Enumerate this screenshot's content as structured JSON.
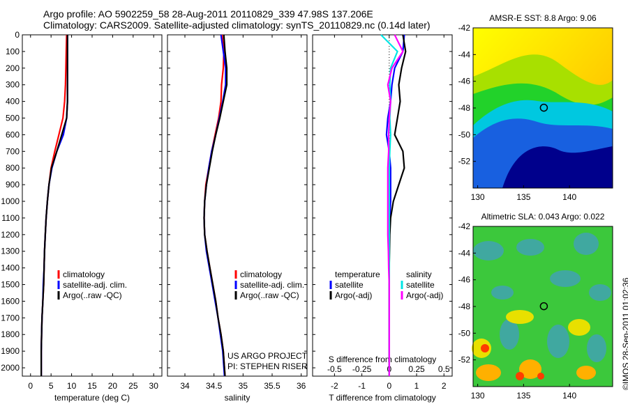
{
  "header": {
    "line1": "Argo profile: AO 5902259_58 28-Aug-2011 20110829_339 47.98S 137.206E",
    "line2": "Climatology: CARS2009. Satellite-adjusted climatology: synTS_20110829.nc (0.14d later)"
  },
  "credit": "©IMOS 28-Sep-2011 01:02:36",
  "chart_data": [
    {
      "type": "line",
      "xlabel": "temperature (deg C)",
      "ylabel": "",
      "xlim": [
        -2,
        32
      ],
      "ylim": [
        2050,
        0
      ],
      "xticks": [
        "0",
        "5",
        "10",
        "15",
        "20",
        "25",
        "30"
      ],
      "xtick_values": [
        0,
        5,
        10,
        15,
        20,
        25,
        30
      ],
      "yticks": [
        "0",
        "100",
        "200",
        "300",
        "400",
        "500",
        "600",
        "700",
        "800",
        "900",
        "1000",
        "1100",
        "1200",
        "1300",
        "1400",
        "1500",
        "1600",
        "1700",
        "1800",
        "1900",
        "2000"
      ],
      "legend": [
        "climatology",
        "satellite-adj. clim.",
        "Argo(..raw -QC)"
      ],
      "series": [
        {
          "name": "climatology",
          "color": "#ff0000",
          "x": [
            8.8,
            8.7,
            8.6,
            8.5,
            8.3,
            7.9,
            6.9,
            5.9,
            5.0,
            4.5,
            4.1,
            3.8,
            3.6,
            3.4,
            3.3,
            3.2,
            3.0,
            2.8,
            2.7,
            2.6,
            2.6
          ],
          "y": [
            0,
            100,
            200,
            300,
            400,
            500,
            600,
            700,
            800,
            900,
            1000,
            1100,
            1200,
            1300,
            1400,
            1500,
            1600,
            1700,
            1800,
            1900,
            2050
          ]
        },
        {
          "name": "satellite-adj. clim.",
          "color": "#0000ff",
          "x": [
            9.0,
            9.0,
            9.0,
            9.0,
            9.0,
            8.8,
            8.0,
            6.4,
            5.2,
            4.5,
            4.1,
            3.8,
            3.6,
            3.4,
            3.3,
            3.1,
            3.0,
            2.8,
            2.7,
            2.6,
            2.6
          ],
          "y": [
            0,
            100,
            200,
            300,
            400,
            500,
            600,
            700,
            800,
            900,
            1000,
            1100,
            1200,
            1300,
            1400,
            1500,
            1600,
            1700,
            1800,
            1900,
            2050
          ]
        },
        {
          "name": "Argo(..raw -QC)",
          "color": "#000000",
          "x": [
            9.0,
            9.0,
            9.0,
            9.0,
            9.0,
            8.8,
            7.6,
            6.4,
            5.1,
            4.5,
            4.1,
            3.8,
            3.6,
            3.4,
            3.3,
            3.2,
            3.0,
            2.8,
            2.7,
            2.6,
            2.6
          ],
          "y": [
            0,
            100,
            200,
            300,
            400,
            500,
            600,
            700,
            800,
            900,
            1000,
            1100,
            1200,
            1300,
            1400,
            1500,
            1600,
            1700,
            1800,
            1900,
            2050
          ]
        }
      ]
    },
    {
      "type": "line",
      "xlabel": "salinity",
      "ylabel": "",
      "xlim": [
        33.7,
        36.1
      ],
      "ylim": [
        2050,
        0
      ],
      "xticks": [
        "34",
        "34.5",
        "35",
        "35.5",
        "36"
      ],
      "xtick_values": [
        34,
        34.5,
        35,
        35.5,
        36
      ],
      "legend": [
        "climatology",
        "satellite-adj. clim.",
        "Argo(..raw -QC)"
      ],
      "annotation": [
        "US ARGO PROJECT",
        "PI: STEPHEN RISER"
      ],
      "series": [
        {
          "name": "climatology",
          "color": "#ff0000",
          "x": [
            34.64,
            34.67,
            34.66,
            34.63,
            34.62,
            34.58,
            34.52,
            34.46,
            34.41,
            34.36,
            34.34,
            34.33,
            34.34,
            34.38,
            34.43,
            34.48,
            34.53,
            34.57,
            34.62,
            34.66,
            34.69
          ],
          "y": [
            0,
            100,
            200,
            300,
            400,
            500,
            600,
            700,
            800,
            900,
            1000,
            1100,
            1200,
            1300,
            1400,
            1500,
            1600,
            1700,
            1800,
            1900,
            2050
          ]
        },
        {
          "name": "satellite-adj. clim.",
          "color": "#0000ff",
          "x": [
            34.62,
            34.66,
            34.7,
            34.7,
            34.65,
            34.59,
            34.53,
            34.46,
            34.41,
            34.37,
            34.34,
            34.33,
            34.34,
            34.37,
            34.42,
            34.47,
            34.52,
            34.57,
            34.61,
            34.65,
            34.68
          ],
          "y": [
            0,
            100,
            200,
            300,
            400,
            500,
            600,
            700,
            800,
            900,
            1000,
            1100,
            1200,
            1300,
            1400,
            1500,
            1600,
            1700,
            1800,
            1900,
            2050
          ]
        },
        {
          "name": "Argo(..raw -QC)",
          "color": "#000000",
          "x": [
            34.67,
            34.69,
            34.72,
            34.72,
            34.66,
            34.6,
            34.53,
            34.47,
            34.42,
            34.37,
            34.34,
            34.33,
            34.34,
            34.38,
            34.43,
            34.48,
            34.53,
            34.57,
            34.62,
            34.66,
            34.69
          ],
          "y": [
            0,
            100,
            200,
            300,
            400,
            500,
            600,
            700,
            800,
            900,
            1000,
            1100,
            1200,
            1300,
            1400,
            1500,
            1600,
            1700,
            1800,
            1900,
            2050
          ]
        }
      ]
    },
    {
      "type": "line",
      "xlabel": "T difference from climatology",
      "xlabel_top": "S difference from climatology",
      "xlim": [
        -2.8,
        2.3
      ],
      "ylim": [
        2050,
        0
      ],
      "xticks": [
        "-2",
        "-1",
        "0",
        "1",
        "2"
      ],
      "xtick_values": [
        -2,
        -1,
        0,
        1,
        2
      ],
      "xticks_top": [
        "-0.5",
        "-0.25",
        "0",
        "0.25",
        "0.5"
      ],
      "legend_temperature_title": "temperature",
      "legend_salinity_title": "salinity",
      "legend": [
        "satellite",
        "Argo(-adj)",
        "satellite",
        "Argo(-adj)"
      ],
      "series": [
        {
          "name": "satellite",
          "color": "#0000ff",
          "x": [
            0.55,
            0.5,
            0.2,
            0.1,
            0.05,
            -0.05,
            -0.1,
            0,
            0.05,
            0.05,
            0.05,
            0.02,
            0,
            0,
            0,
            0,
            0,
            0,
            0,
            0,
            0
          ],
          "y": [
            0,
            100,
            200,
            300,
            400,
            500,
            600,
            700,
            800,
            900,
            1000,
            1100,
            1200,
            1300,
            1400,
            1500,
            1600,
            1700,
            1800,
            1900,
            2050
          ]
        },
        {
          "name": "Argo(-adj)",
          "color": "#000000",
          "x": [
            0.5,
            0.6,
            0.45,
            0.35,
            0.4,
            0.3,
            0.2,
            0.5,
            0.55,
            0.35,
            0.15,
            0.05,
            0.02,
            0.01,
            0,
            0,
            0,
            0,
            0,
            0,
            0
          ],
          "y": [
            0,
            100,
            200,
            300,
            400,
            500,
            600,
            700,
            800,
            900,
            1000,
            1100,
            1200,
            1300,
            1400,
            1500,
            1600,
            1700,
            1800,
            1900,
            2050
          ]
        },
        {
          "name": "satellite",
          "color": "#00e5e5",
          "x": [
            -0.3,
            0.3,
            0.05,
            0.02,
            0.05,
            0.02,
            0.05,
            0.02,
            0,
            0,
            0,
            0,
            0,
            0,
            0,
            0,
            0,
            0,
            0,
            0,
            0
          ],
          "y": [
            0,
            100,
            200,
            300,
            400,
            500,
            600,
            700,
            800,
            900,
            1000,
            1100,
            1200,
            1300,
            1400,
            1500,
            1600,
            1700,
            1800,
            1900,
            2050
          ]
        },
        {
          "name": "Argo(-adj)",
          "color": "#ff00ff",
          "x": [
            0.2,
            0.5,
            0.1,
            -0.05,
            0.05,
            0,
            -0.02,
            -0.02,
            -0.05,
            -0.05,
            -0.05,
            -0.05,
            -0.05,
            -0.03,
            -0.02,
            0,
            0,
            0,
            0,
            0,
            0
          ],
          "y": [
            0,
            100,
            200,
            300,
            400,
            500,
            600,
            700,
            800,
            900,
            1000,
            1100,
            1200,
            1300,
            1400,
            1500,
            1600,
            1700,
            1800,
            1900,
            2050
          ]
        }
      ]
    },
    {
      "type": "heatmap",
      "title": "AMSR-E SST: 8.8 Argo: 9.06",
      "xlim": [
        129.5,
        144.7
      ],
      "ylim": [
        -54,
        -42
      ],
      "xticks": [
        "130",
        "135",
        "140"
      ],
      "xtick_values": [
        130,
        135,
        140
      ],
      "yticks": [
        "-42",
        "-44",
        "-46",
        "-48",
        "-50",
        "-52"
      ],
      "ytick_values": [
        -42,
        -44,
        -46,
        -48,
        -50,
        -52
      ],
      "marker": {
        "lon": 137.206,
        "lat": -47.98
      }
    },
    {
      "type": "heatmap",
      "title": "Altimetric SLA: 0.043 Argo: 0.022",
      "xlim": [
        129.5,
        144.7
      ],
      "ylim": [
        -54,
        -42
      ],
      "xticks": [
        "130",
        "135",
        "140"
      ],
      "xtick_values": [
        130,
        135,
        140
      ],
      "yticks": [
        "-42",
        "-44",
        "-46",
        "-48",
        "-50",
        "-52"
      ],
      "ytick_values": [
        -42,
        -44,
        -46,
        -48,
        -50,
        -52
      ],
      "marker": {
        "lon": 137.206,
        "lat": -47.98
      }
    }
  ]
}
